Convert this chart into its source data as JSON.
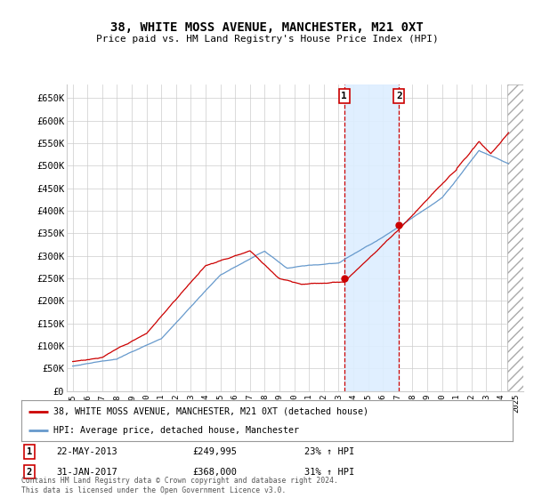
{
  "title": "38, WHITE MOSS AVENUE, MANCHESTER, M21 0XT",
  "subtitle": "Price paid vs. HM Land Registry's House Price Index (HPI)",
  "ylabel_ticks": [
    "£0",
    "£50K",
    "£100K",
    "£150K",
    "£200K",
    "£250K",
    "£300K",
    "£350K",
    "£400K",
    "£450K",
    "£500K",
    "£550K",
    "£600K",
    "£650K"
  ],
  "ylim": [
    0,
    680000
  ],
  "xlim_start": 1994.6,
  "xlim_end": 2025.5,
  "marker1_x": 2013.385,
  "marker1_price": 249995,
  "marker2_x": 2017.083,
  "marker2_price": 368000,
  "hatch_start": 2024.4,
  "legend_line1": "38, WHITE MOSS AVENUE, MANCHESTER, M21 0XT (detached house)",
  "legend_line2": "HPI: Average price, detached house, Manchester",
  "table_row1_date": "22-MAY-2013",
  "table_row1_price": "£249,995",
  "table_row1_hpi": "23% ↑ HPI",
  "table_row2_date": "31-JAN-2017",
  "table_row2_price": "£368,000",
  "table_row2_hpi": "31% ↑ HPI",
  "footnote": "Contains HM Land Registry data © Crown copyright and database right 2024.\nThis data is licensed under the Open Government Licence v3.0.",
  "red_color": "#cc0000",
  "blue_color": "#6699cc",
  "blue_span_color": "#ddeeff",
  "bg_color": "#ffffff",
  "grid_color": "#cccccc"
}
